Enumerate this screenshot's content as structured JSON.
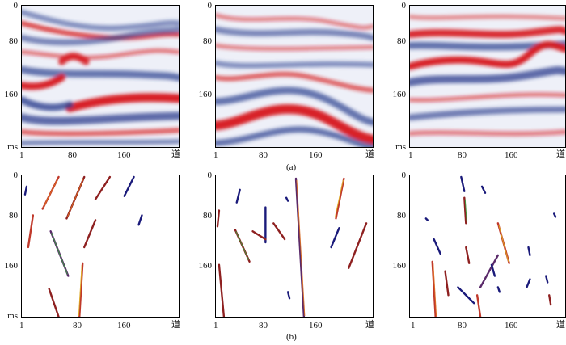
{
  "captions": {
    "top": "(a)",
    "bottom": "(b)"
  },
  "axis": {
    "y_ticks": [
      "0",
      "80",
      "160",
      "ms"
    ],
    "panel_x_ticks": [
      [
        "1",
        "80",
        "160",
        "道"
      ],
      [
        "1",
        "80",
        "160",
        "道"
      ],
      [
        "1",
        "80",
        "160",
        "道"
      ]
    ]
  },
  "bottom_axis": {
    "y_ticks": [
      "0",
      "80",
      "160",
      "ms"
    ],
    "panel_x_ticks": [
      [
        "1",
        "80",
        "160",
        "道"
      ],
      [
        "1",
        "80",
        "160",
        "道"
      ],
      [
        "1",
        "80",
        "160",
        "道"
      ]
    ]
  },
  "colors": {
    "positive": "#d7191c",
    "negative": "#2b3f8f",
    "trace": "#1a1a7a",
    "accent": "#e07020"
  }
}
